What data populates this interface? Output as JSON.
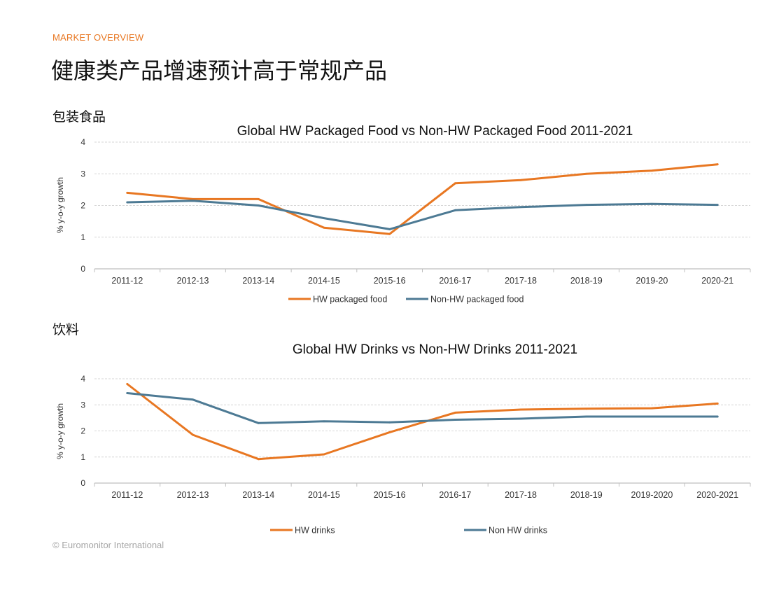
{
  "header": {
    "eyebrow": "MARKET OVERVIEW",
    "title": "健康类产品增速预计高于常规产品"
  },
  "colors": {
    "eyebrow": "#e87722",
    "hw": "#e87722",
    "nonhw": "#4d7a94",
    "grid": "#d6d6d6",
    "axis": "#bfbfbf",
    "text": "#111111"
  },
  "sections": [
    {
      "label": "包装食品"
    },
    {
      "label": "饮料"
    }
  ],
  "footer": {
    "copyright": "© Euromonitor International"
  },
  "chart_data": [
    {
      "type": "line",
      "title": "Global HW Packaged Food vs Non-HW Packaged Food 2011-2021",
      "xlabel": "",
      "ylabel": "% y-o-y growth",
      "ylim": [
        0,
        4
      ],
      "yticks": [
        0,
        1,
        2,
        3,
        4
      ],
      "grid": true,
      "legend": "bottom-center",
      "categories": [
        "2011-12",
        "2012-13",
        "2013-14",
        "2014-15",
        "2015-16",
        "2016-17",
        "2017-18",
        "2018-19",
        "2019-20",
        "2020-21"
      ],
      "series": [
        {
          "name": "HW packaged food",
          "color": "#e87722",
          "values": [
            2.4,
            2.2,
            2.2,
            1.3,
            1.1,
            2.7,
            2.8,
            3.0,
            3.1,
            3.3
          ]
        },
        {
          "name": "Non-HW packaged food",
          "color": "#4d7a94",
          "values": [
            2.1,
            2.15,
            2.0,
            1.6,
            1.25,
            1.85,
            1.95,
            2.02,
            2.05,
            2.02
          ]
        }
      ]
    },
    {
      "type": "line",
      "title": "Global HW Drinks vs Non-HW Drinks 2011-2021",
      "xlabel": "",
      "ylabel": "% y-o-y growth",
      "ylim": [
        0,
        4
      ],
      "yticks": [
        0,
        1,
        2,
        3,
        4
      ],
      "grid": true,
      "legend": "bottom-center",
      "categories": [
        "2011-12",
        "2012-13",
        "2013-14",
        "2014-15",
        "2015-16",
        "2016-17",
        "2017-18",
        "2018-19",
        "2019-2020",
        "2020-2021"
      ],
      "series": [
        {
          "name": "HW drinks",
          "color": "#e87722",
          "values": [
            3.8,
            1.85,
            0.92,
            1.1,
            1.95,
            2.7,
            2.82,
            2.85,
            2.87,
            3.05
          ]
        },
        {
          "name": "Non HW drinks",
          "color": "#4d7a94",
          "values": [
            3.45,
            3.2,
            2.3,
            2.37,
            2.33,
            2.43,
            2.47,
            2.55,
            2.55,
            2.55
          ]
        }
      ]
    }
  ]
}
